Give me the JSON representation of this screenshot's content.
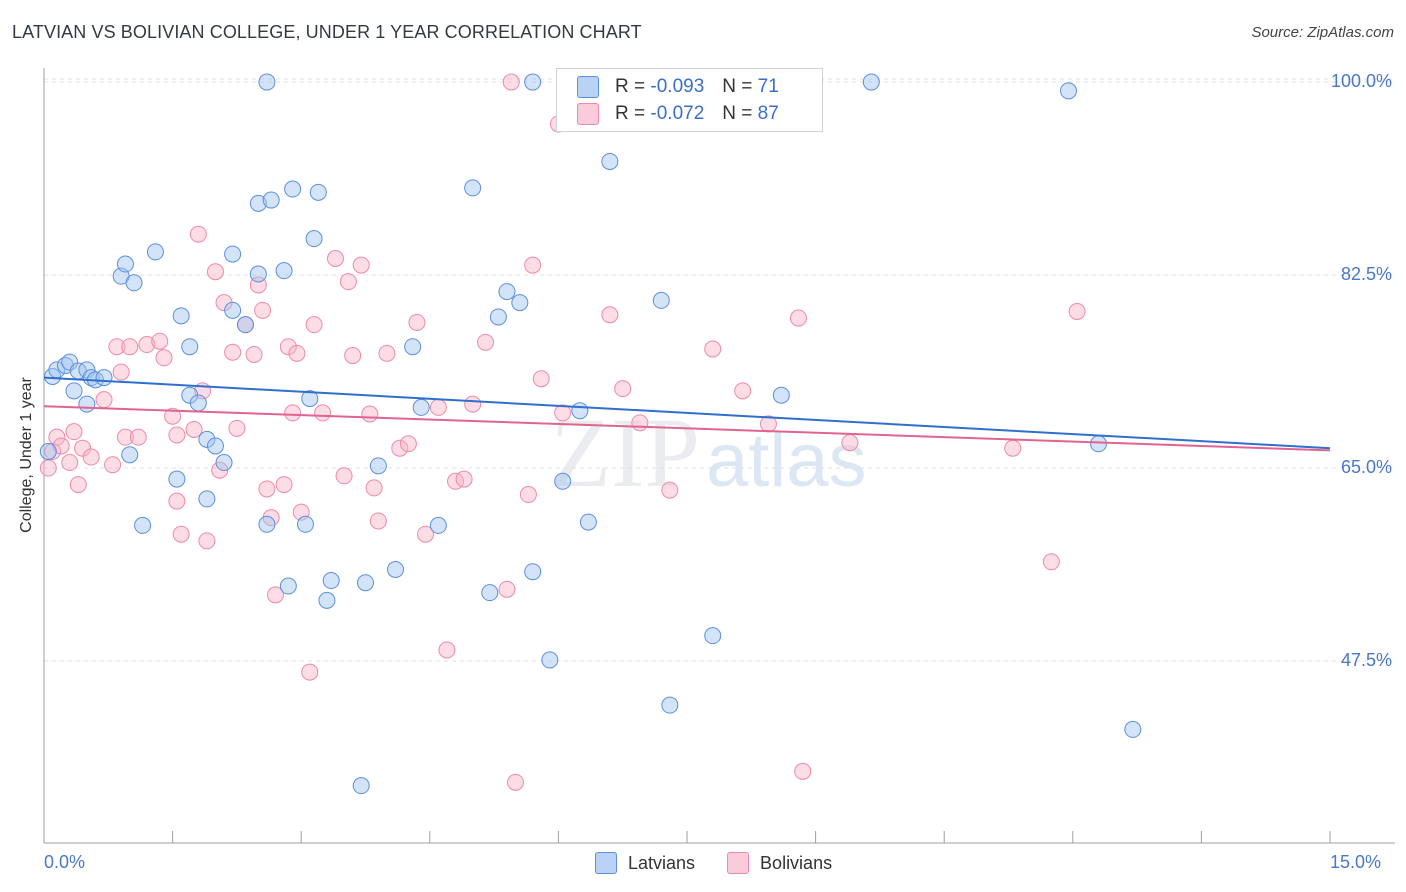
{
  "colors": {
    "latvians": "#5b8fe0",
    "latvians_fill": "rgba(160,195,240,0.45)",
    "latvians_line": "#2f6fce",
    "bolivians": "#ee8aa8",
    "bolivians_fill": "rgba(248,180,200,0.45)",
    "bolivians_line": "#e0648f",
    "grid": "#dde1e6",
    "axis_label": "#4a78c8"
  },
  "chart_data": {
    "type": "scatter",
    "title": "LATVIAN VS BOLIVIAN COLLEGE, UNDER 1 YEAR CORRELATION CHART",
    "source": "Source: ZipAtlas.com",
    "xlabel": "",
    "ylabel": "College, Under 1 year",
    "xlim": [
      0,
      15
    ],
    "ylim": [
      31,
      102
    ],
    "x_tick_labels": [
      "0.0%",
      "15.0%"
    ],
    "y_ticks": [
      47.5,
      65.0,
      82.5,
      100.0
    ],
    "y_tick_labels": [
      "47.5%",
      "65.0%",
      "82.5%",
      "100.0%"
    ],
    "watermark": {
      "main": "ZIP",
      "sub": "atlas"
    },
    "legend": {
      "rows": [
        {
          "r_label": "R =",
          "r_value": "-0.093",
          "n_label": "N =",
          "n_value": "71"
        },
        {
          "r_label": "R =",
          "r_value": "-0.072",
          "n_label": "N =",
          "n_value": "87"
        }
      ]
    },
    "series": [
      {
        "name": "Latvians",
        "trend": {
          "x": [
            0,
            15
          ],
          "y": [
            73.2,
            66.8
          ]
        },
        "points": [
          [
            0.1,
            73.3
          ],
          [
            0.15,
            73.9
          ],
          [
            0.25,
            74.3
          ],
          [
            0.3,
            74.6
          ],
          [
            0.4,
            73.8
          ],
          [
            0.5,
            73.9
          ],
          [
            0.55,
            73.2
          ],
          [
            0.6,
            73.0
          ],
          [
            0.35,
            72.0
          ],
          [
            0.5,
            70.8
          ],
          [
            0.7,
            73.2
          ],
          [
            0.05,
            66.5
          ],
          [
            0.9,
            82.4
          ],
          [
            0.95,
            83.5
          ],
          [
            1.05,
            81.8
          ],
          [
            1.3,
            84.6
          ],
          [
            1.6,
            78.8
          ],
          [
            1.7,
            76.0
          ],
          [
            1.7,
            71.6
          ],
          [
            1.8,
            70.9
          ],
          [
            1.9,
            67.6
          ],
          [
            2.0,
            67.0
          ],
          [
            2.1,
            65.5
          ],
          [
            1.9,
            62.2
          ],
          [
            1.55,
            64.0
          ],
          [
            1.15,
            59.8
          ],
          [
            2.2,
            84.4
          ],
          [
            2.2,
            79.3
          ],
          [
            2.35,
            78.0
          ],
          [
            2.5,
            82.6
          ],
          [
            2.5,
            89.0
          ],
          [
            2.65,
            89.3
          ],
          [
            2.6,
            59.9
          ],
          [
            2.8,
            82.9
          ],
          [
            2.9,
            90.3
          ],
          [
            2.85,
            54.3
          ],
          [
            3.05,
            59.9
          ],
          [
            3.1,
            71.3
          ],
          [
            3.15,
            85.8
          ],
          [
            3.2,
            90.0
          ],
          [
            3.3,
            53.0
          ],
          [
            3.35,
            54.8
          ],
          [
            3.75,
            54.6
          ],
          [
            3.9,
            65.2
          ],
          [
            4.1,
            55.8
          ],
          [
            4.3,
            76.0
          ],
          [
            4.4,
            70.5
          ],
          [
            4.6,
            59.8
          ],
          [
            5.0,
            90.4
          ],
          [
            5.2,
            53.7
          ],
          [
            5.3,
            78.7
          ],
          [
            5.4,
            81.0
          ],
          [
            5.55,
            80.0
          ],
          [
            5.7,
            55.6
          ],
          [
            5.9,
            47.6
          ],
          [
            6.05,
            63.8
          ],
          [
            6.25,
            70.2
          ],
          [
            6.35,
            60.1
          ],
          [
            6.6,
            92.8
          ],
          [
            7.2,
            80.2
          ],
          [
            7.3,
            43.5
          ],
          [
            7.8,
            49.8
          ],
          [
            8.6,
            71.6
          ],
          [
            9.65,
            100.0
          ],
          [
            11.95,
            99.2
          ],
          [
            12.3,
            67.2
          ],
          [
            12.7,
            41.3
          ],
          [
            3.7,
            36.2
          ],
          [
            1.0,
            66.2
          ],
          [
            2.6,
            100.0
          ],
          [
            5.7,
            100.0
          ]
        ]
      },
      {
        "name": "Bolivians",
        "trend": {
          "x": [
            0,
            15
          ],
          "y": [
            70.6,
            66.6
          ]
        },
        "points": [
          [
            0.05,
            65.0
          ],
          [
            0.1,
            66.5
          ],
          [
            0.15,
            67.8
          ],
          [
            0.2,
            67.0
          ],
          [
            0.3,
            65.5
          ],
          [
            0.35,
            68.3
          ],
          [
            0.4,
            63.5
          ],
          [
            0.45,
            66.8
          ],
          [
            0.55,
            66.0
          ],
          [
            0.7,
            71.2
          ],
          [
            0.8,
            65.3
          ],
          [
            0.85,
            76.0
          ],
          [
            0.9,
            73.7
          ],
          [
            0.95,
            67.8
          ],
          [
            1.0,
            76.0
          ],
          [
            1.1,
            67.8
          ],
          [
            1.2,
            76.2
          ],
          [
            1.35,
            76.5
          ],
          [
            1.4,
            75.0
          ],
          [
            1.5,
            69.7
          ],
          [
            1.55,
            68.0
          ],
          [
            1.6,
            59.0
          ],
          [
            1.75,
            68.5
          ],
          [
            1.8,
            86.2
          ],
          [
            1.85,
            72.0
          ],
          [
            1.9,
            58.4
          ],
          [
            2.0,
            82.8
          ],
          [
            2.05,
            64.8
          ],
          [
            2.1,
            80.0
          ],
          [
            2.2,
            75.5
          ],
          [
            2.25,
            68.6
          ],
          [
            2.35,
            78.0
          ],
          [
            2.45,
            75.3
          ],
          [
            2.5,
            81.6
          ],
          [
            2.55,
            79.3
          ],
          [
            2.6,
            63.1
          ],
          [
            2.65,
            60.5
          ],
          [
            2.7,
            53.5
          ],
          [
            2.8,
            63.5
          ],
          [
            2.85,
            76.0
          ],
          [
            2.9,
            70.0
          ],
          [
            3.0,
            61.0
          ],
          [
            3.1,
            46.5
          ],
          [
            3.15,
            78.0
          ],
          [
            3.25,
            70.0
          ],
          [
            3.4,
            84.0
          ],
          [
            3.5,
            64.3
          ],
          [
            3.55,
            81.9
          ],
          [
            3.6,
            75.2
          ],
          [
            3.7,
            83.4
          ],
          [
            3.8,
            69.9
          ],
          [
            3.85,
            63.2
          ],
          [
            3.9,
            60.2
          ],
          [
            4.0,
            75.4
          ],
          [
            4.15,
            66.8
          ],
          [
            4.25,
            67.2
          ],
          [
            4.35,
            78.2
          ],
          [
            4.45,
            59.0
          ],
          [
            4.6,
            70.5
          ],
          [
            4.7,
            48.5
          ],
          [
            4.8,
            63.8
          ],
          [
            4.9,
            64.0
          ],
          [
            5.0,
            70.8
          ],
          [
            5.15,
            76.4
          ],
          [
            5.4,
            54.0
          ],
          [
            5.45,
            100.0
          ],
          [
            5.5,
            36.5
          ],
          [
            5.65,
            62.6
          ],
          [
            5.7,
            83.4
          ],
          [
            5.8,
            73.1
          ],
          [
            6.0,
            96.2
          ],
          [
            6.05,
            70.0
          ],
          [
            6.6,
            78.9
          ],
          [
            6.75,
            72.2
          ],
          [
            6.95,
            69.1
          ],
          [
            7.3,
            63.0
          ],
          [
            7.8,
            75.8
          ],
          [
            8.15,
            72.0
          ],
          [
            8.45,
            69.0
          ],
          [
            8.8,
            78.6
          ],
          [
            8.85,
            37.5
          ],
          [
            9.4,
            67.3
          ],
          [
            11.3,
            66.8
          ],
          [
            11.75,
            56.5
          ],
          [
            12.05,
            79.2
          ],
          [
            1.55,
            62.0
          ],
          [
            2.95,
            75.4
          ]
        ]
      }
    ]
  },
  "bottom_legend": {
    "items": [
      "Latvians",
      "Bolivians"
    ]
  }
}
